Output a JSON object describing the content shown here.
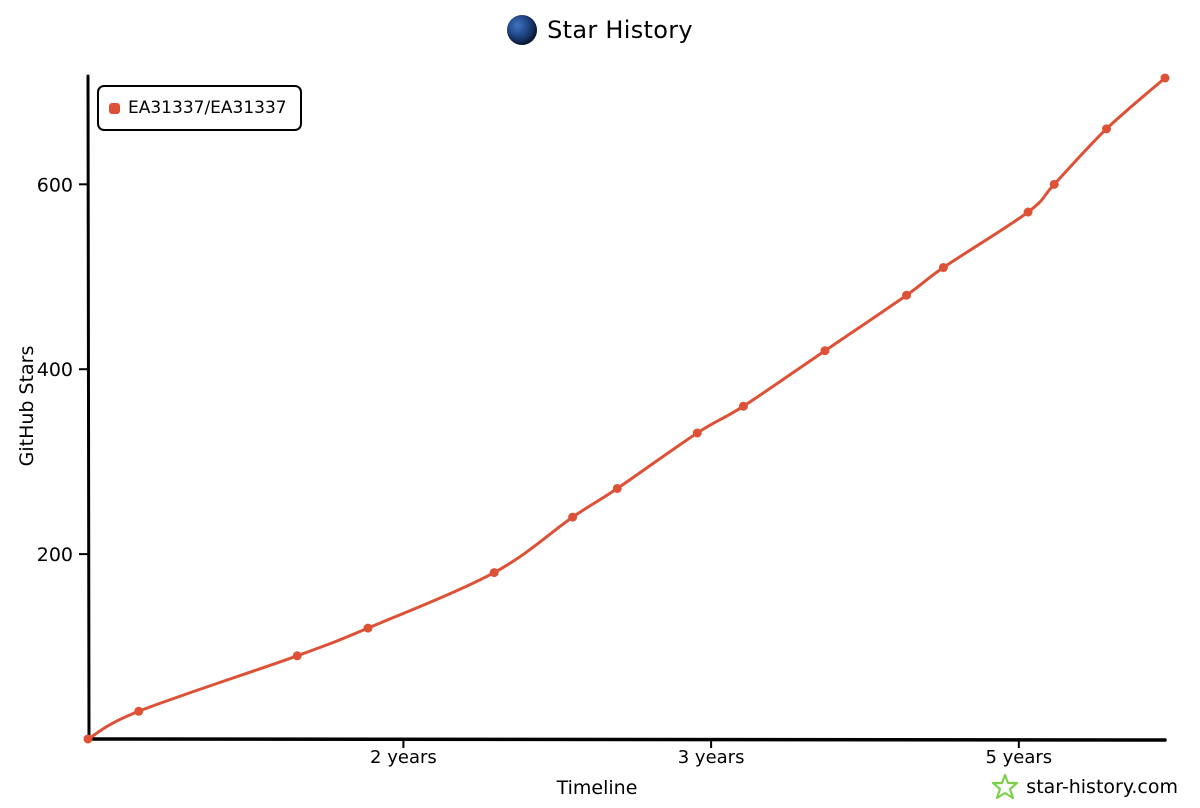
{
  "header": {
    "title": "Star History"
  },
  "legend": {
    "label": "EA31337/EA31337"
  },
  "watermark": {
    "text": "star-history.com"
  },
  "colors": {
    "series": "#dd5236",
    "axis": "#000000",
    "watermark_icon": "#7bd24a"
  },
  "icons": {
    "title": "globe-icon",
    "watermark": "star-logo-icon"
  },
  "chart_data": {
    "type": "line",
    "xlabel": "Timeline",
    "ylabel": "GitHub Stars",
    "ylim": [
      0,
      715
    ],
    "yticks": [
      200,
      400,
      600
    ],
    "xlim": [
      0,
      70
    ],
    "xticks": [
      {
        "x": 20.5,
        "label": "2 years"
      },
      {
        "x": 40.5,
        "label": "3 years"
      },
      {
        "x": 60.5,
        "label": "5 years"
      }
    ],
    "grid": false,
    "legend_position": "top-left",
    "series": [
      {
        "name": "EA31337/EA31337",
        "x": [
          0,
          3.3,
          13.6,
          18.2,
          26.4,
          31.5,
          34.4,
          39.6,
          42.6,
          47.9,
          53.2,
          55.6,
          61.1,
          62.8,
          66.2,
          70
        ],
        "y": [
          0,
          30,
          90,
          120,
          180,
          240,
          271,
          331,
          360,
          420,
          480,
          510,
          570,
          600,
          660,
          715
        ]
      }
    ]
  }
}
